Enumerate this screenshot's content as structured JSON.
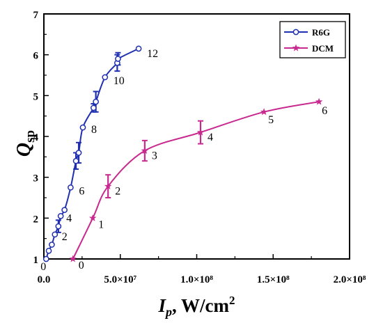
{
  "chart_data": {
    "type": "line",
    "xlim": [
      0,
      200000000
    ],
    "ylim": [
      1,
      7
    ],
    "x_ticks": [
      {
        "value": 0,
        "label": "0.0"
      },
      {
        "value": 50000000,
        "label": "5.0×10⁷"
      },
      {
        "value": 100000000,
        "label": "1.0×10⁸"
      },
      {
        "value": 150000000,
        "label": "1.5×10⁸"
      },
      {
        "value": 200000000,
        "label": "2.0×10⁸"
      }
    ],
    "y_ticks": [
      1,
      2,
      3,
      4,
      5,
      6,
      7
    ],
    "xlabel": {
      "main": "I",
      "sub": "p",
      "rest": ", W/cm",
      "sup": "2"
    },
    "ylabel": {
      "main": "Q",
      "sub": "sp"
    },
    "grid": false,
    "legend": {
      "position": "top-right"
    },
    "series": [
      {
        "name": "R6G",
        "color": "#1f2fb0",
        "marker": "circle",
        "x": [
          1500000,
          3200000,
          5200000,
          7200000,
          9500000,
          11000000,
          13500000,
          17500000,
          21000000,
          22800000,
          25500000,
          32500000,
          34000000,
          40000000,
          48000000,
          48500000,
          62000000
        ],
        "y": [
          1.0,
          1.2,
          1.35,
          1.6,
          1.8,
          2.05,
          2.2,
          2.75,
          3.4,
          3.6,
          4.22,
          4.7,
          4.85,
          5.45,
          5.8,
          5.9,
          6.15
        ],
        "err": [
          0,
          0,
          0,
          0,
          0.15,
          0,
          0,
          0,
          0.2,
          0.25,
          0,
          0.1,
          0.25,
          0,
          0.2,
          0.15,
          0
        ],
        "point_labels": [
          {
            "text": "0",
            "at": 0
          },
          {
            "text": "2",
            "at": 3
          },
          {
            "text": "4",
            "at": 5
          },
          {
            "text": "6",
            "at": 7
          },
          {
            "text": "8",
            "at": 10
          },
          {
            "text": "10",
            "at": 13
          },
          {
            "text": "12",
            "at": 16
          }
        ]
      },
      {
        "name": "DCM",
        "color": "#c8298f",
        "marker": "star",
        "x": [
          19000000,
          32000000,
          42000000,
          66000000,
          102500000,
          144000000,
          180000000
        ],
        "y": [
          1.0,
          2.0,
          2.78,
          3.65,
          4.1,
          4.6,
          4.85
        ],
        "err": [
          0,
          0,
          0.28,
          0.25,
          0.28,
          0,
          0
        ],
        "point_labels": [
          {
            "text": "0",
            "at": 0
          },
          {
            "text": "1",
            "at": 1
          },
          {
            "text": "2",
            "at": 2
          },
          {
            "text": "3",
            "at": 3
          },
          {
            "text": "4",
            "at": 4
          },
          {
            "text": "5",
            "at": 5
          },
          {
            "text": "6",
            "at": 6
          }
        ]
      }
    ]
  }
}
